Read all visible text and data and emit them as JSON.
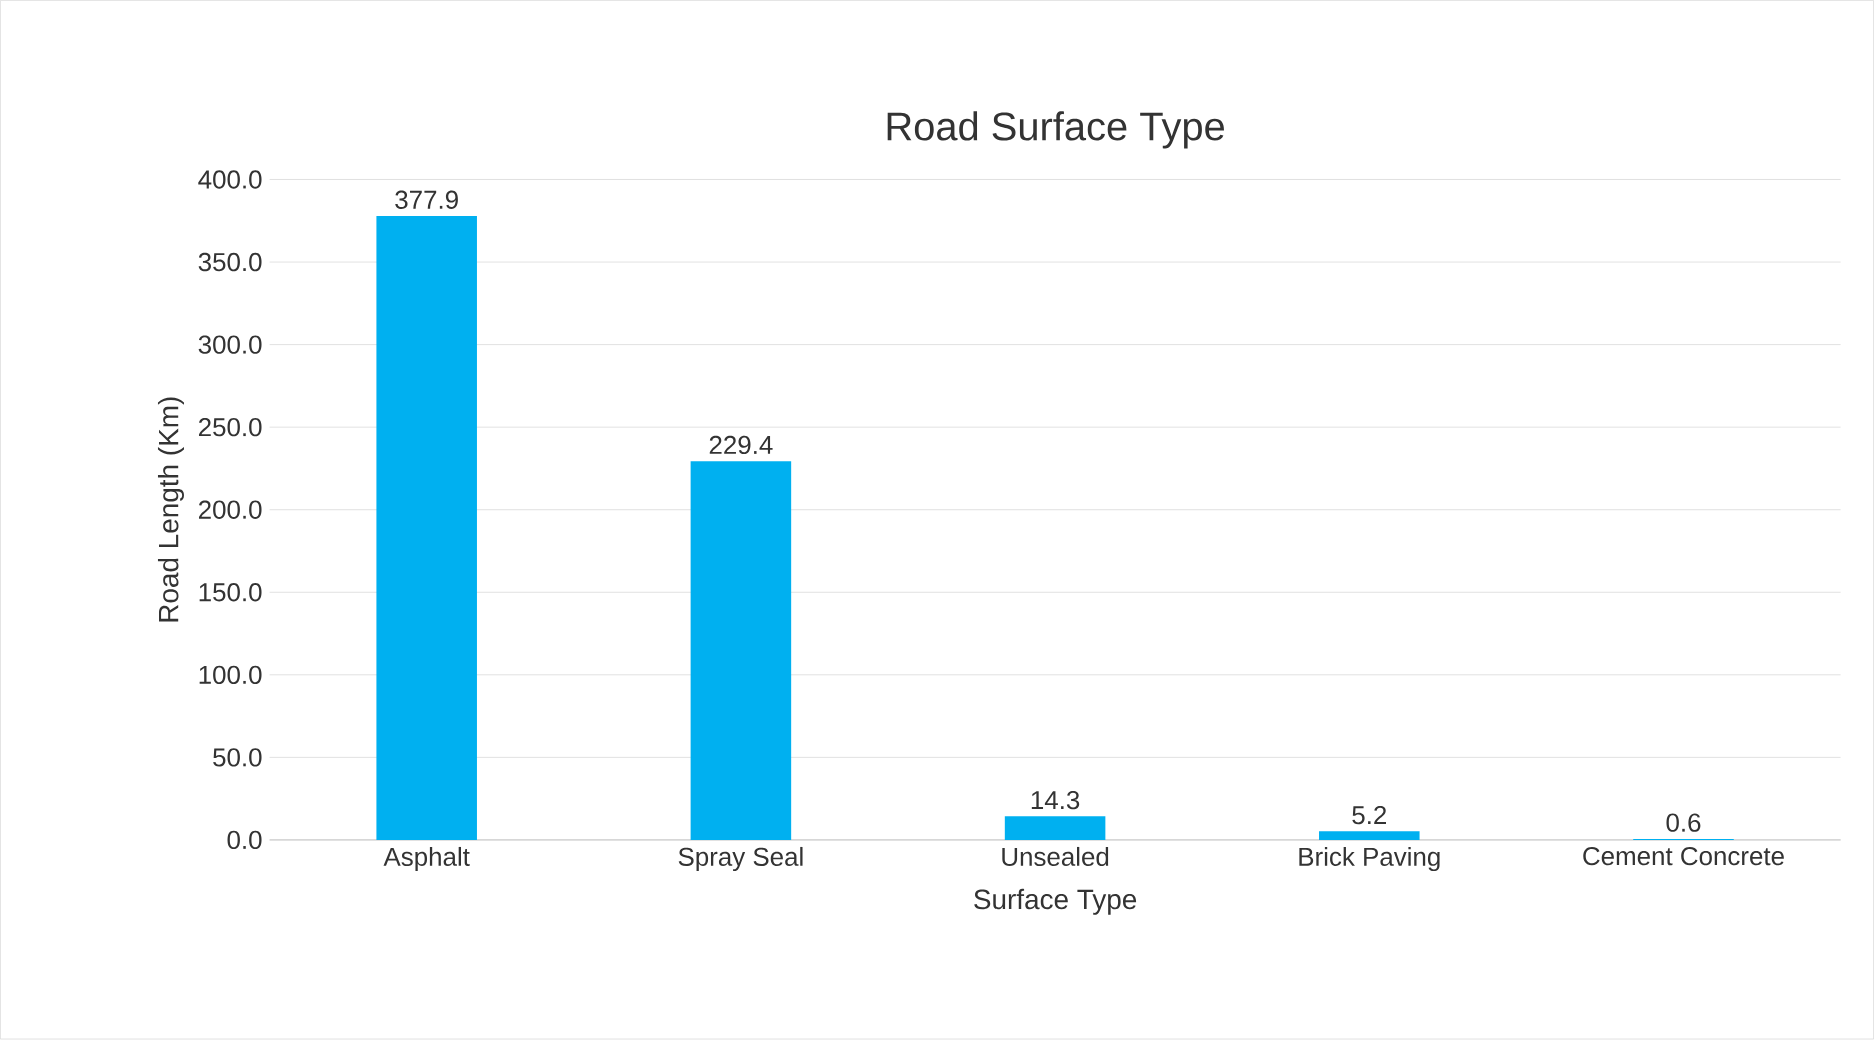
{
  "chart_data": {
    "type": "bar",
    "title": "Road Surface Type",
    "xlabel": "Surface Type",
    "ylabel": "Road Length (Km)",
    "categories": [
      "Asphalt",
      "Spray Seal",
      "Unsealed",
      "Brick Paving",
      "Cement Concrete"
    ],
    "values": [
      377.9,
      229.4,
      14.3,
      5.2,
      0.6
    ],
    "color": "#00b0f0",
    "ylim": [
      0,
      400
    ],
    "yticks": [
      {
        "value": 0,
        "label": "0.0"
      },
      {
        "value": 50,
        "label": "50.0"
      },
      {
        "value": 100,
        "label": "100.0"
      },
      {
        "value": 150,
        "label": "150.0"
      },
      {
        "value": 200,
        "label": "200.0"
      },
      {
        "value": 250,
        "label": "250.0"
      },
      {
        "value": 300,
        "label": "300.0"
      },
      {
        "value": 350,
        "label": "350.0"
      },
      {
        "value": 400,
        "label": "400.0"
      }
    ],
    "grid": "y",
    "data_labels": true
  }
}
